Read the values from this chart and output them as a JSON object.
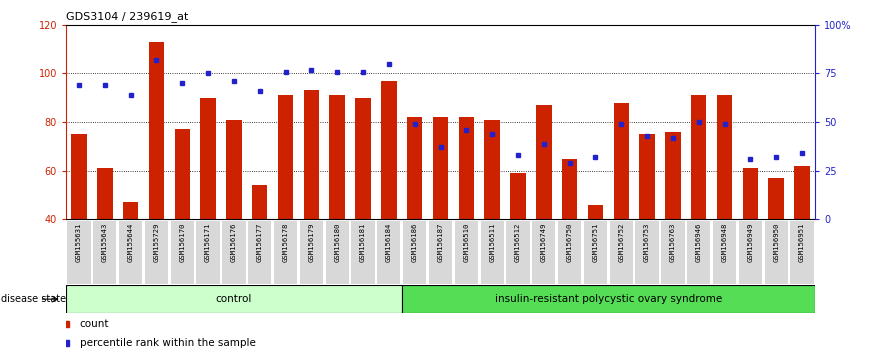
{
  "title": "GDS3104 / 239619_at",
  "samples": [
    "GSM155631",
    "GSM155643",
    "GSM155644",
    "GSM155729",
    "GSM156170",
    "GSM156171",
    "GSM156176",
    "GSM156177",
    "GSM156178",
    "GSM156179",
    "GSM156180",
    "GSM156181",
    "GSM156184",
    "GSM156186",
    "GSM156187",
    "GSM156510",
    "GSM156511",
    "GSM156512",
    "GSM156749",
    "GSM156750",
    "GSM156751",
    "GSM156752",
    "GSM156753",
    "GSM156763",
    "GSM156946",
    "GSM156948",
    "GSM156949",
    "GSM156950",
    "GSM156951"
  ],
  "bar_values": [
    75,
    61,
    47,
    113,
    77,
    90,
    81,
    54,
    91,
    93,
    91,
    90,
    97,
    82,
    82,
    82,
    81,
    59,
    87,
    65,
    46,
    88,
    75,
    76,
    91,
    91,
    61,
    57,
    62
  ],
  "dot_values_pct": [
    69,
    69,
    64,
    82,
    70,
    75,
    71,
    66,
    76,
    77,
    76,
    76,
    80,
    49,
    37,
    46,
    44,
    33,
    39,
    29,
    32,
    49,
    43,
    42,
    50,
    49,
    31,
    32,
    34
  ],
  "n_control": 13,
  "n_disease": 16,
  "control_label": "control",
  "disease_label": "insulin-resistant polycystic ovary syndrome",
  "bar_color": "#cc2200",
  "dot_color": "#2222cc",
  "ymin": 40,
  "ymax": 120,
  "yticks_left": [
    40,
    60,
    80,
    100,
    120
  ],
  "grid_lines": [
    60,
    80,
    100
  ],
  "yticks_right_pct": [
    0,
    25,
    50,
    75,
    100
  ],
  "ytick_labels_right": [
    "0",
    "25",
    "50",
    "75",
    "100%"
  ],
  "legend_count": "count",
  "legend_percentile": "percentile rank within the sample",
  "disease_state_label": "disease state",
  "control_bg": "#ccffcc",
  "disease_bg": "#55dd55",
  "ticklabel_bg": "#d8d8d8"
}
